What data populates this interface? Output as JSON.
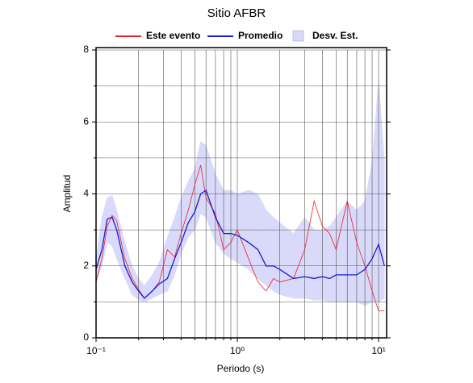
{
  "chart_data": {
    "type": "line",
    "title": "Sitio AFBR",
    "x_label": "Periodo (s)",
    "y_label": "Amplitud",
    "log_x": true,
    "grid": true,
    "legend_position": "top",
    "xlim": [
      0.1,
      11.4
    ],
    "ylim": [
      0,
      8
    ],
    "xticks": [
      {
        "value": 0.1,
        "label": "10⁻¹"
      },
      {
        "value": 1,
        "label": "10⁰"
      },
      {
        "value": 10,
        "label": "10¹"
      }
    ],
    "xminor": [
      0.2,
      0.3,
      0.4,
      0.5,
      0.6,
      0.7,
      0.8,
      0.9,
      2,
      3,
      4,
      5,
      6,
      7,
      8,
      9
    ],
    "yticks": [
      0,
      2,
      4,
      6,
      8
    ],
    "yminor": [
      1,
      3,
      5,
      7
    ],
    "x": [
      0.1,
      0.11,
      0.12,
      0.13,
      0.14,
      0.16,
      0.18,
      0.2,
      0.22,
      0.25,
      0.28,
      0.32,
      0.36,
      0.4,
      0.45,
      0.5,
      0.55,
      0.6,
      0.7,
      0.8,
      0.9,
      1.0,
      1.2,
      1.4,
      1.6,
      1.8,
      2.0,
      2.5,
      3.0,
      3.5,
      4.0,
      4.5,
      5.0,
      6.0,
      7.0,
      8.0,
      9.0,
      10.0,
      11.0
    ],
    "band": {
      "name": "Desv. Est.",
      "color": "#d9d9fa",
      "upper": [
        2.2,
        3.35,
        3.9,
        3.95,
        3.55,
        2.65,
        2.0,
        1.65,
        1.45,
        1.75,
        2.1,
        2.8,
        3.35,
        3.9,
        4.35,
        4.7,
        5.45,
        5.35,
        4.55,
        4.1,
        4.1,
        4.0,
        4.1,
        4.0,
        3.55,
        3.35,
        3.2,
        2.9,
        3.35,
        3.0,
        3.0,
        3.1,
        3.35,
        3.8,
        3.55,
        3.8,
        4.9,
        7.15,
        4.9
      ],
      "lower": [
        1.55,
        2.0,
        2.65,
        2.55,
        2.2,
        1.65,
        1.2,
        1.05,
        1.0,
        1.1,
        1.2,
        1.3,
        1.75,
        2.35,
        2.8,
        3.0,
        3.45,
        3.35,
        2.65,
        2.35,
        2.2,
        2.1,
        1.9,
        1.65,
        1.45,
        1.3,
        1.2,
        1.1,
        1.1,
        1.05,
        1.05,
        1.0,
        1.0,
        1.0,
        1.0,
        0.9,
        1.0,
        1.0,
        1.1
      ]
    },
    "series": [
      {
        "name": "Este evento",
        "color": "#e8202a",
        "values": [
          1.55,
          2.2,
          3.1,
          3.4,
          3.25,
          2.2,
          1.65,
          1.35,
          1.1,
          1.3,
          1.55,
          2.45,
          2.25,
          2.9,
          3.55,
          4.25,
          4.8,
          3.9,
          3.45,
          2.45,
          2.65,
          3.0,
          2.2,
          1.55,
          1.3,
          1.65,
          1.55,
          1.65,
          2.45,
          3.8,
          3.1,
          2.9,
          2.45,
          3.8,
          2.65,
          2.0,
          1.3,
          0.75,
          0.75
        ]
      },
      {
        "name": "Promedio",
        "color": "#1a1ad6",
        "values": [
          1.9,
          2.45,
          3.3,
          3.35,
          3.0,
          2.0,
          1.55,
          1.3,
          1.1,
          1.3,
          1.5,
          1.65,
          2.2,
          2.65,
          3.2,
          3.5,
          4.0,
          4.1,
          3.35,
          2.9,
          2.9,
          2.85,
          2.65,
          2.45,
          2.0,
          2.0,
          1.9,
          1.65,
          1.7,
          1.65,
          1.7,
          1.65,
          1.75,
          1.75,
          1.75,
          1.9,
          2.2,
          2.6,
          2.0
        ]
      }
    ]
  }
}
